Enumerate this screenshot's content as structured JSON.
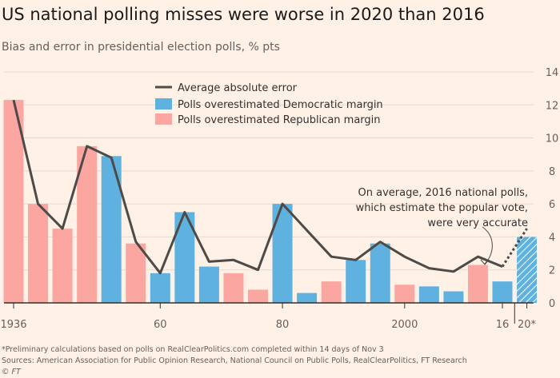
{
  "title": "US national polling misses were worse in 2020 than 2016",
  "subtitle": "Bias and error in presidential election polls, % pts",
  "footer": {
    "note": "*Preliminary calculations based on polls on RealClearPolitics.com completed within 14 days of Nov 3",
    "sources": "Sources: American Association for Public Opinion Research, National Council on Public Polls, RealClearPolitics, FT Research",
    "credit": "© FT"
  },
  "colors": {
    "background": "#fff1e5",
    "democratic": "#5fb2e0",
    "republican": "#fba6a0",
    "line": "#4d4a48",
    "axis": "#33302e",
    "text": "#33302e",
    "muted": "#66605c"
  },
  "chart_data": {
    "type": "bar",
    "x_tick_labels": [
      "1936",
      "60",
      "80",
      "2000",
      "16",
      "20*"
    ],
    "y_ticks": [
      "0",
      "2",
      "4",
      "6",
      "8",
      "10",
      "12",
      "14"
    ],
    "ylim": [
      0,
      14
    ],
    "legend": [
      {
        "label": "Average absolute error",
        "kind": "line"
      },
      {
        "label": "Polls overestimated Democratic margin",
        "kind": "democratic"
      },
      {
        "label": "Polls overestimated Republican margin",
        "kind": "republican"
      }
    ],
    "annotation": {
      "lines": [
        "On average, 2016 national polls,",
        "which estimate the popular vote,",
        "were very accurate"
      ]
    },
    "bars": [
      {
        "year": 1936,
        "value": 12.3,
        "side": "republican"
      },
      {
        "year": 1940,
        "value": 6.0,
        "side": "republican"
      },
      {
        "year": 1944,
        "value": 4.5,
        "side": "republican"
      },
      {
        "year": 1948,
        "value": 9.5,
        "side": "republican"
      },
      {
        "year": 1952,
        "value": 8.9,
        "side": "democratic"
      },
      {
        "year": 1956,
        "value": 3.6,
        "side": "republican"
      },
      {
        "year": 1960,
        "value": 1.8,
        "side": "democratic"
      },
      {
        "year": 1964,
        "value": 5.5,
        "side": "democratic"
      },
      {
        "year": 1968,
        "value": 2.2,
        "side": "democratic"
      },
      {
        "year": 1972,
        "value": 1.8,
        "side": "republican"
      },
      {
        "year": 1976,
        "value": 0.8,
        "side": "republican"
      },
      {
        "year": 1980,
        "value": 6.0,
        "side": "democratic"
      },
      {
        "year": 1984,
        "value": 0.6,
        "side": "democratic"
      },
      {
        "year": 1988,
        "value": 1.3,
        "side": "republican"
      },
      {
        "year": 1992,
        "value": 2.6,
        "side": "democratic"
      },
      {
        "year": 1996,
        "value": 3.6,
        "side": "democratic"
      },
      {
        "year": 2000,
        "value": 1.1,
        "side": "republican"
      },
      {
        "year": 2004,
        "value": 1.0,
        "side": "democratic"
      },
      {
        "year": 2008,
        "value": 0.7,
        "side": "democratic"
      },
      {
        "year": 2012,
        "value": 2.3,
        "side": "republican"
      },
      {
        "year": 2016,
        "value": 1.3,
        "side": "democratic"
      },
      {
        "year": 2020,
        "value": 4.0,
        "side": "democratic",
        "preliminary": true
      }
    ],
    "series": [
      {
        "name": "Average absolute error",
        "x": [
          1936,
          1940,
          1944,
          1948,
          1952,
          1956,
          1960,
          1964,
          1968,
          1972,
          1976,
          1980,
          1984,
          1988,
          1992,
          1996,
          2000,
          2004,
          2008,
          2012,
          2016,
          2020
        ],
        "values": [
          12.3,
          6.0,
          4.5,
          9.5,
          8.8,
          3.7,
          1.8,
          5.5,
          2.5,
          2.6,
          2.0,
          6.0,
          4.4,
          2.8,
          2.6,
          3.7,
          2.8,
          2.1,
          1.9,
          2.8,
          2.2,
          4.5
        ],
        "dashed_from": 2016
      }
    ]
  }
}
